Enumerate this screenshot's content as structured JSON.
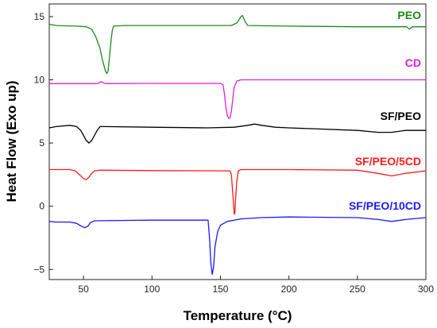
{
  "chart_data": {
    "type": "line",
    "xlabel": "Temperature (°C)",
    "ylabel": "Heat Flow (Exo up)",
    "xlim": [
      25,
      300
    ],
    "ylim": [
      -5.8,
      16.0
    ],
    "x_ticks": [
      50,
      100,
      150,
      200,
      250,
      300
    ],
    "y_ticks": [
      -5,
      0,
      5,
      10,
      15
    ],
    "grid": false,
    "series": [
      {
        "name": "PEO",
        "color": "#1a8a1a",
        "points": [
          [
            25,
            14.4
          ],
          [
            30,
            14.3
          ],
          [
            45,
            14.25
          ],
          [
            52,
            14.2
          ],
          [
            56,
            14.0
          ],
          [
            59,
            13.4
          ],
          [
            62,
            12.5
          ],
          [
            64,
            11.5
          ],
          [
            66,
            10.7
          ],
          [
            67,
            10.5
          ],
          [
            68,
            10.7
          ],
          [
            69,
            11.8
          ],
          [
            70,
            13.0
          ],
          [
            71,
            13.9
          ],
          [
            72,
            14.25
          ],
          [
            80,
            14.3
          ],
          [
            120,
            14.3
          ],
          [
            150,
            14.3
          ],
          [
            158,
            14.3
          ],
          [
            162,
            14.5
          ],
          [
            165,
            15.0
          ],
          [
            166,
            15.1
          ],
          [
            168,
            14.6
          ],
          [
            170,
            14.3
          ],
          [
            200,
            14.25
          ],
          [
            250,
            14.2
          ],
          [
            280,
            14.2
          ],
          [
            286,
            14.2
          ],
          [
            288,
            14.0
          ],
          [
            290,
            14.2
          ],
          [
            300,
            14.2
          ]
        ]
      },
      {
        "name": "CD",
        "color": "#e020d8",
        "points": [
          [
            25,
            9.7
          ],
          [
            50,
            9.7
          ],
          [
            60,
            9.7
          ],
          [
            63,
            9.85
          ],
          [
            66,
            9.7
          ],
          [
            100,
            9.72
          ],
          [
            140,
            9.72
          ],
          [
            150,
            9.72
          ],
          [
            152,
            9.6
          ],
          [
            153,
            8.8
          ],
          [
            154,
            7.8
          ],
          [
            155,
            7.2
          ],
          [
            156,
            6.95
          ],
          [
            157,
            7.0
          ],
          [
            158,
            7.5
          ],
          [
            159,
            8.5
          ],
          [
            160,
            9.4
          ],
          [
            162,
            9.9
          ],
          [
            165,
            10.0
          ],
          [
            200,
            10.0
          ],
          [
            250,
            10.0
          ],
          [
            300,
            10.0
          ]
        ]
      },
      {
        "name": "SF/PEO",
        "color": "#000000",
        "points": [
          [
            25,
            6.2
          ],
          [
            30,
            6.3
          ],
          [
            40,
            6.4
          ],
          [
            45,
            6.3
          ],
          [
            48,
            6.0
          ],
          [
            50,
            5.6
          ],
          [
            52,
            5.2
          ],
          [
            54,
            5.0
          ],
          [
            56,
            5.2
          ],
          [
            58,
            5.6
          ],
          [
            60,
            6.0
          ],
          [
            62,
            6.3
          ],
          [
            65,
            6.3
          ],
          [
            100,
            6.25
          ],
          [
            140,
            6.2
          ],
          [
            160,
            6.25
          ],
          [
            170,
            6.4
          ],
          [
            175,
            6.5
          ],
          [
            180,
            6.4
          ],
          [
            190,
            6.25
          ],
          [
            200,
            6.2
          ],
          [
            250,
            6.0
          ],
          [
            265,
            5.85
          ],
          [
            275,
            5.85
          ],
          [
            285,
            6.0
          ],
          [
            300,
            6.0
          ]
        ]
      },
      {
        "name": "SF/PEO/5CD",
        "color": "#ff1a1a",
        "points": [
          [
            25,
            2.9
          ],
          [
            40,
            2.9
          ],
          [
            44,
            2.8
          ],
          [
            47,
            2.5
          ],
          [
            50,
            2.2
          ],
          [
            52,
            2.1
          ],
          [
            54,
            2.3
          ],
          [
            56,
            2.6
          ],
          [
            58,
            2.8
          ],
          [
            62,
            2.85
          ],
          [
            100,
            2.82
          ],
          [
            150,
            2.8
          ],
          [
            157,
            2.8
          ],
          [
            158,
            2.5
          ],
          [
            159,
            1.0
          ],
          [
            160,
            -0.6
          ],
          [
            160.5,
            -0.6
          ],
          [
            161,
            0.5
          ],
          [
            162,
            2.0
          ],
          [
            163,
            2.8
          ],
          [
            165,
            2.9
          ],
          [
            200,
            2.9
          ],
          [
            250,
            2.85
          ],
          [
            265,
            2.6
          ],
          [
            275,
            2.4
          ],
          [
            285,
            2.6
          ],
          [
            300,
            2.8
          ]
        ]
      },
      {
        "name": "SF/PEO/10CD",
        "color": "#1a1aff",
        "points": [
          [
            25,
            -1.2
          ],
          [
            30,
            -1.25
          ],
          [
            40,
            -1.25
          ],
          [
            45,
            -1.35
          ],
          [
            48,
            -1.55
          ],
          [
            51,
            -1.7
          ],
          [
            53,
            -1.6
          ],
          [
            55,
            -1.3
          ],
          [
            58,
            -1.15
          ],
          [
            100,
            -1.1
          ],
          [
            130,
            -1.1
          ],
          [
            141,
            -1.1
          ],
          [
            142,
            -2.5
          ],
          [
            143,
            -4.5
          ],
          [
            144,
            -5.4
          ],
          [
            145,
            -4.8
          ],
          [
            146,
            -3.2
          ],
          [
            148,
            -2.0
          ],
          [
            150,
            -1.5
          ],
          [
            155,
            -1.2
          ],
          [
            165,
            -1.0
          ],
          [
            180,
            -0.9
          ],
          [
            200,
            -0.85
          ],
          [
            250,
            -0.9
          ],
          [
            265,
            -1.05
          ],
          [
            275,
            -1.2
          ],
          [
            285,
            -1.05
          ],
          [
            300,
            -0.9
          ]
        ]
      }
    ]
  }
}
